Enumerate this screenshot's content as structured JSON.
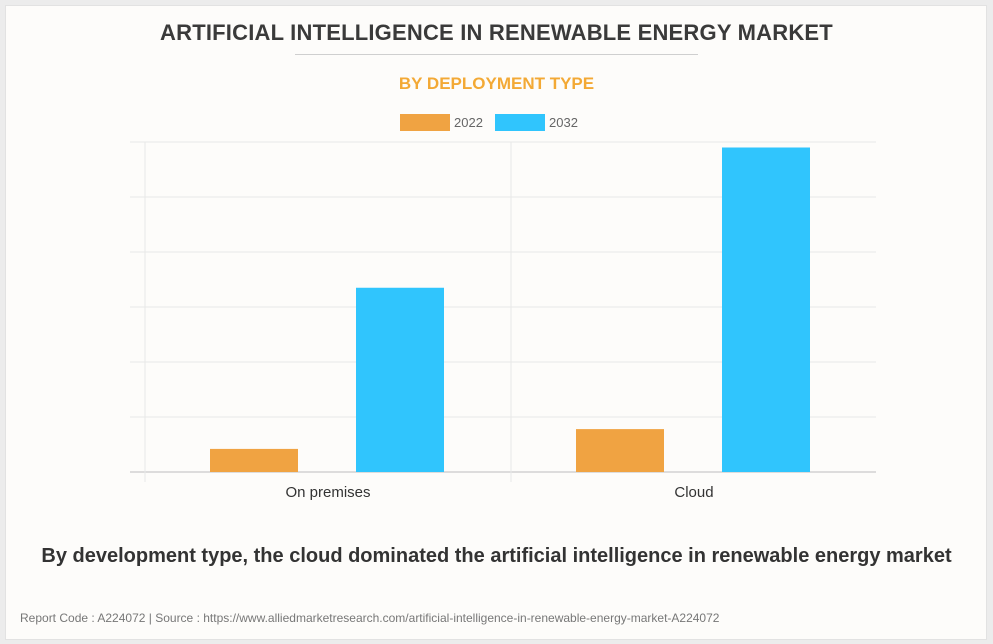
{
  "title": "ARTIFICIAL INTELLIGENCE IN RENEWABLE ENERGY MARKET",
  "subtitle": "BY DEPLOYMENT TYPE",
  "caption": "By development type, the cloud dominated the artificial intelligence in renewable energy market",
  "footer": "Report Code : A224072  |  Source : https://www.alliedmarketresearch.com/artificial-intelligence-in-renewable-energy-market-A224072",
  "colors": {
    "series_2022": "#f0a342",
    "series_2032": "#30c5fd",
    "subtitle": "#f3a935"
  },
  "chart_data": {
    "type": "bar",
    "title": "ARTIFICIAL INTELLIGENCE IN RENEWABLE ENERGY MARKET",
    "subtitle": "BY DEPLOYMENT TYPE",
    "categories": [
      "On premises",
      "Cloud"
    ],
    "series": [
      {
        "name": "2022",
        "values": [
          0.42,
          0.78
        ]
      },
      {
        "name": "2032",
        "values": [
          3.35,
          5.9
        ]
      }
    ],
    "xlabel": "",
    "ylabel": "",
    "ylim": [
      0,
      6
    ],
    "yticks_shown": false,
    "grid": true,
    "legend": "top-center"
  }
}
